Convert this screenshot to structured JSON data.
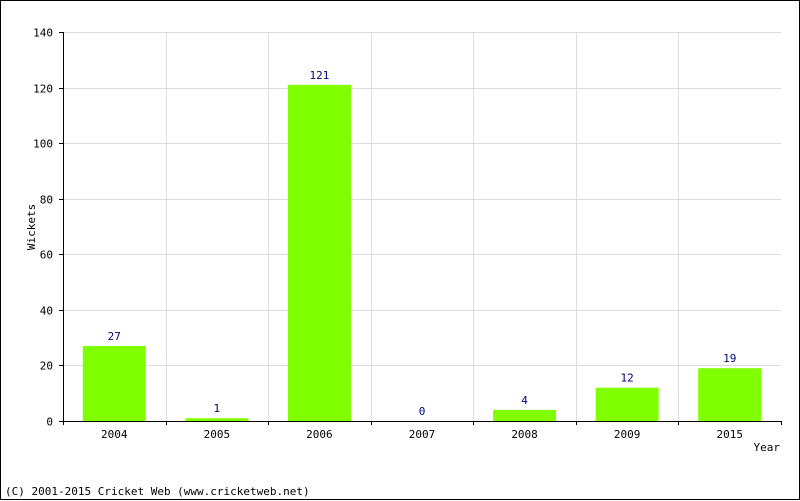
{
  "chart_data": {
    "type": "bar",
    "categories": [
      "2004",
      "2005",
      "2006",
      "2007",
      "2008",
      "2009",
      "2015"
    ],
    "values": [
      27,
      1,
      121,
      0,
      4,
      12,
      19
    ],
    "xlabel": "Year",
    "ylabel": "Wickets",
    "ylim": [
      0,
      140
    ],
    "yticks": [
      0,
      20,
      40,
      60,
      80,
      100,
      120,
      140
    ],
    "grid": true,
    "bar_color": "#80ff00",
    "label_color": "#000080"
  },
  "footer": "(C) 2001-2015 Cricket Web (www.cricketweb.net)"
}
